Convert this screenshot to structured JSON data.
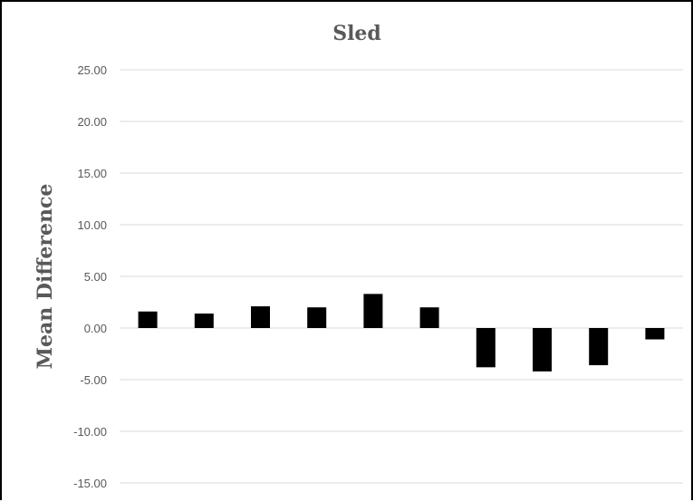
{
  "chart_data": {
    "type": "bar",
    "title": "Sled",
    "xlabel": "",
    "ylabel": "Mean Difference",
    "categories": [
      "",
      "",
      "",
      "",
      "",
      "",
      "",
      "",
      "",
      ""
    ],
    "values": [
      1.6,
      1.4,
      2.1,
      2.0,
      3.3,
      2.0,
      -3.8,
      -4.2,
      -3.6,
      -1.1
    ],
    "ylim": [
      -15,
      25
    ],
    "yticks": [
      25,
      20,
      15,
      10,
      5,
      0,
      -5,
      -10,
      -15
    ],
    "ytick_labels": [
      "25.00",
      "20.00",
      "15.00",
      "10.00",
      "5.00",
      "0.00",
      "-5.00",
      "-10.00",
      "-15.00"
    ],
    "grid": true,
    "legend": "none",
    "bar_color": "#000000",
    "text_color": "#595959",
    "grid_color": "#d9d9d9"
  }
}
